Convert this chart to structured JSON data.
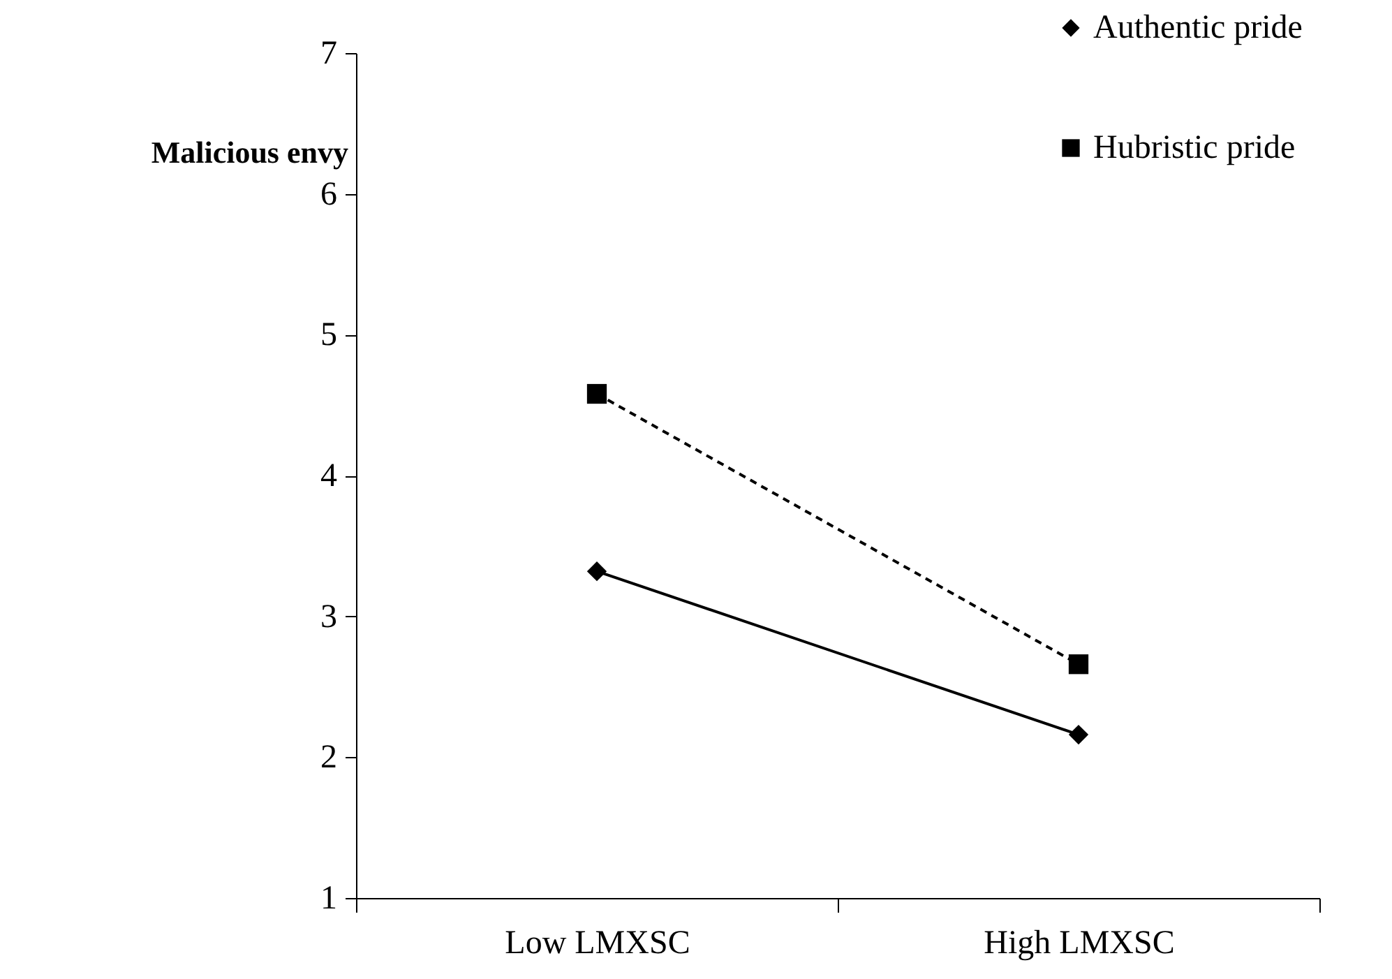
{
  "chart_data": {
    "type": "line",
    "ylabel": "Malicious envy",
    "categories": [
      "Low LMXSC",
      "High LMXSC"
    ],
    "series": [
      {
        "name": "Authentic pride",
        "color": "#000000",
        "marker": "diamond",
        "line_style": "solid",
        "values": [
          3.32,
          2.16
        ]
      },
      {
        "name": "Hubristic pride",
        "color": "#000000",
        "marker": "square",
        "line_style": "dashed",
        "values": [
          4.58,
          2.66
        ]
      }
    ],
    "ylim": [
      1,
      7
    ],
    "yticks": [
      1,
      2,
      3,
      4,
      5,
      6,
      7
    ],
    "grid": false,
    "legend": "top right"
  }
}
